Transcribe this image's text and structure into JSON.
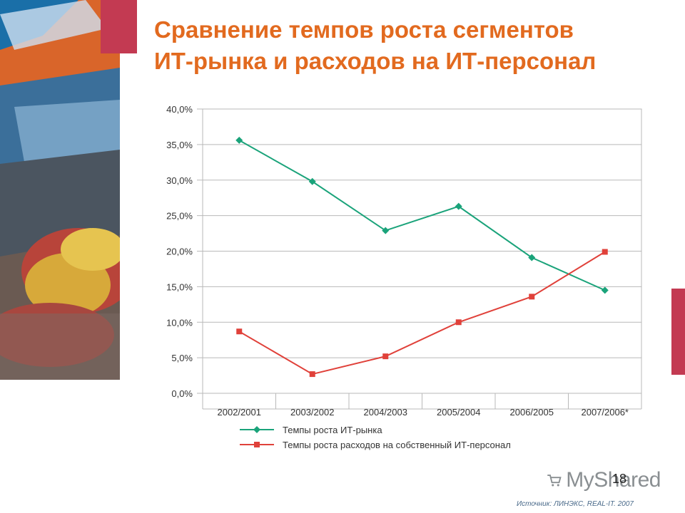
{
  "slide": {
    "title_line1": "Сравнение темпов роста сегментов",
    "title_line2": "ИТ-рынка и расходов на ИТ-персонал",
    "page_number": "18",
    "source": "Источник: ЛИНЭКС, REAL-IT. 2007",
    "watermark": "MyShared",
    "accent_color": "#c33a52",
    "title_color": "#e26a1f"
  },
  "chart_data": {
    "type": "line",
    "categories": [
      "2002/2001",
      "2003/2002",
      "2004/2003",
      "2005/2004",
      "2006/2005",
      "2007/2006*"
    ],
    "y_ticks": [
      "0,0%",
      "5,0%",
      "10,0%",
      "15,0%",
      "20,0%",
      "25,0%",
      "30,0%",
      "35,0%",
      "40,0%"
    ],
    "ylim": [
      0,
      40
    ],
    "grid": true,
    "legend_position": "bottom",
    "series": [
      {
        "name": "Темпы роста ИТ-рынка",
        "color": "#1aa37a",
        "marker": "diamond",
        "values": [
          35.6,
          29.8,
          22.9,
          26.3,
          19.1,
          14.5
        ]
      },
      {
        "name": "Темпы роста расходов на собственный ИТ-персонал",
        "color": "#e0413a",
        "marker": "square",
        "values": [
          8.7,
          2.7,
          5.2,
          10.0,
          13.6,
          19.9
        ]
      }
    ]
  }
}
